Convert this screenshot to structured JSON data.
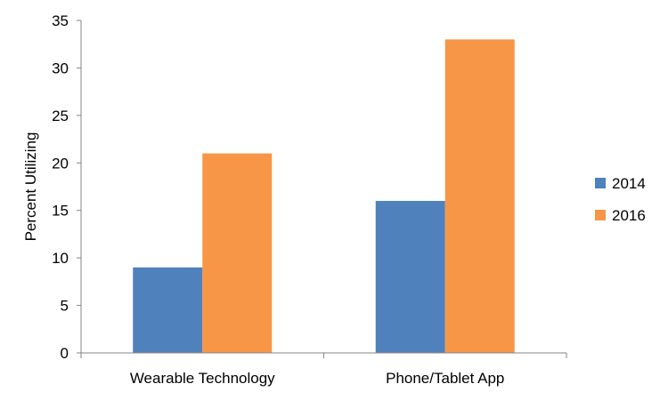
{
  "chart_data": {
    "type": "bar",
    "title": "",
    "xlabel": "",
    "ylabel": "Percent Utilizing",
    "categories": [
      "Wearable Technology",
      "Phone/Tablet App"
    ],
    "series": [
      {
        "name": "2014",
        "values": [
          9,
          16
        ],
        "color": "#4F81BD"
      },
      {
        "name": "2016",
        "values": [
          21,
          33
        ],
        "color": "#F79646"
      }
    ],
    "ylim": [
      0,
      35
    ],
    "yticks": [
      0,
      5,
      10,
      15,
      20,
      25,
      30,
      35
    ],
    "grid": false,
    "legend_position": "right"
  }
}
